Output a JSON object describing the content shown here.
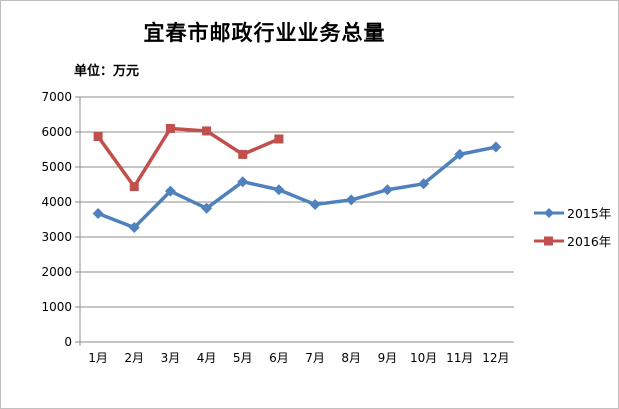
{
  "chart_data": {
    "type": "line",
    "title": "宜春市邮政行业业务总量",
    "unit_label": "单位：万元",
    "xlabel": "",
    "ylabel": "",
    "categories": [
      "1月",
      "2月",
      "3月",
      "4月",
      "5月",
      "6月",
      "7月",
      "8月",
      "9月",
      "10月",
      "11月",
      "12月"
    ],
    "series": [
      {
        "name": "2015年",
        "color": "#4F81BD",
        "marker": "diamond",
        "values": [
          3670,
          3270,
          4310,
          3820,
          4580,
          4350,
          3930,
          4060,
          4350,
          4520,
          5360,
          5570
        ]
      },
      {
        "name": "2016年",
        "color": "#C0504D",
        "marker": "square",
        "values": [
          5870,
          4440,
          6100,
          6030,
          5360,
          5800
        ]
      }
    ],
    "ylim": [
      0,
      7000
    ],
    "ytick_step": 1000,
    "yticks": [
      0,
      1000,
      2000,
      3000,
      4000,
      5000,
      6000,
      7000
    ],
    "grid": true,
    "legend_position": "right",
    "grid_color": "#8c8c8c",
    "axis_color": "#8c8c8c",
    "text_color": "#000000"
  }
}
